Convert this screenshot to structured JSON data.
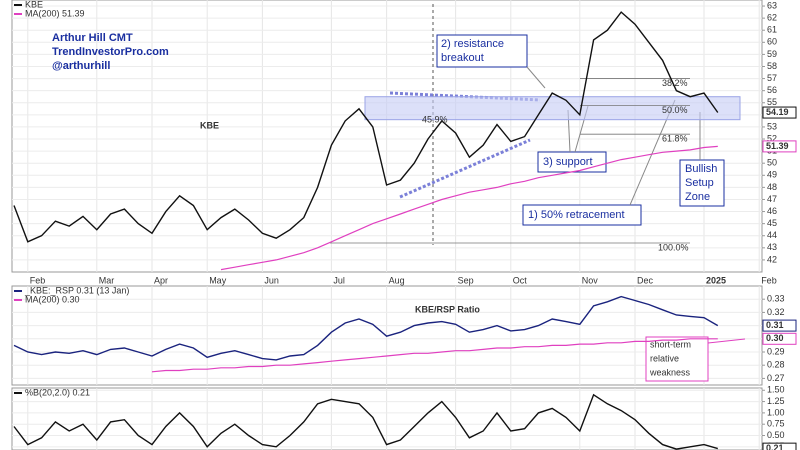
{
  "chart_data": [
    {
      "type": "line",
      "categories": [
        null,
        "Feb",
        null,
        null,
        null,
        null,
        "Mar",
        null,
        null,
        null,
        "Apr",
        null,
        null,
        null,
        "May",
        null,
        null,
        null,
        "Jun",
        null,
        null,
        null,
        null,
        "Jul",
        null,
        null,
        null,
        "Aug",
        null,
        null,
        null,
        null,
        "Sep",
        null,
        null,
        null,
        "Oct",
        null,
        null,
        null,
        null,
        "Nov",
        null,
        null,
        null,
        "Dec",
        null,
        null,
        null,
        null,
        "2025",
        null,
        null,
        null,
        "Feb",
        null
      ],
      "series": [
        {
          "name": "KBE",
          "color": "#111111",
          "values": [
            46.5,
            43.5,
            44,
            45.2,
            44.8,
            45.6,
            44.5,
            45.8,
            46.2,
            45,
            44.2,
            46,
            47.3,
            46.5,
            44.5,
            45.5,
            46.2,
            45.3,
            44.2,
            43.8,
            44.5,
            45.5,
            48,
            51.5,
            53.5,
            54.5,
            53,
            48.2,
            48.6,
            50,
            52,
            53.5,
            52.5,
            50.5,
            51.5,
            53.2,
            51.8,
            52.2,
            54,
            55.8,
            55.2,
            54,
            60.2,
            61,
            62.5,
            61.5,
            60,
            58.5,
            56,
            55.5,
            55.8,
            54.19,
            null,
            null,
            null,
            null
          ]
        },
        {
          "name": "MA(200) 51.39",
          "color": "#e040c0",
          "values": [
            null,
            null,
            null,
            null,
            null,
            null,
            null,
            null,
            null,
            null,
            null,
            null,
            null,
            null,
            null,
            41.2,
            41.4,
            41.6,
            41.8,
            42,
            42.3,
            42.6,
            43,
            43.5,
            44,
            44.5,
            45,
            45.4,
            45.8,
            46.2,
            46.6,
            47,
            47.3,
            47.6,
            47.8,
            48,
            48.3,
            48.5,
            48.8,
            49,
            49.2,
            49.4,
            49.7,
            50,
            50.3,
            50.5,
            50.7,
            50.9,
            51,
            51.1,
            51.3,
            51.39,
            null,
            null,
            null,
            null
          ]
        }
      ],
      "ylim": [
        41,
        63.5
      ],
      "yticks": [
        42,
        43,
        44,
        45,
        46,
        47,
        48,
        49,
        50,
        51,
        52,
        53,
        54,
        55,
        56,
        57,
        58,
        59,
        60,
        61,
        62,
        63
      ],
      "grid": true,
      "zone": [
        53.6,
        55.5
      ],
      "fib_levels": [
        {
          "label": "38.2%",
          "value": 57
        },
        {
          "label": "50.0%",
          "value": 54.76
        },
        {
          "label": "61.8%",
          "value": 52.4
        },
        {
          "label": "100.0%",
          "value": 43.4
        }
      ],
      "annotations": [
        "Arthur Hill CMT",
        "TrendInvestorPro.com",
        "@arthurhill",
        "KBE",
        "2) resistance",
        "breakout",
        "3) support",
        "1) 50% retracement",
        "Bullish",
        "Setup",
        "Zone",
        "45.9%"
      ]
    },
    {
      "type": "line",
      "series": [
        {
          "name": "_KBE:_RSP 0.31 (13 Jan)",
          "color": "#1a237e",
          "values": [
            0.295,
            0.29,
            0.288,
            0.29,
            0.289,
            0.291,
            0.288,
            0.292,
            0.293,
            0.29,
            0.287,
            0.292,
            0.296,
            0.293,
            0.286,
            0.289,
            0.291,
            0.288,
            0.285,
            0.284,
            0.287,
            0.288,
            0.295,
            0.305,
            0.312,
            0.315,
            0.311,
            0.302,
            0.305,
            0.31,
            0.312,
            0.313,
            0.311,
            0.305,
            0.307,
            0.31,
            0.306,
            0.307,
            0.31,
            0.315,
            0.313,
            0.311,
            0.325,
            0.328,
            0.332,
            0.329,
            0.326,
            0.322,
            0.318,
            0.317,
            0.316,
            0.31,
            null,
            null,
            null,
            null
          ]
        },
        {
          "name": "MA(200) 0.30",
          "color": "#e040c0",
          "values": [
            null,
            null,
            null,
            null,
            null,
            null,
            null,
            null,
            null,
            null,
            0.275,
            0.276,
            0.276,
            0.277,
            0.277,
            0.278,
            0.278,
            0.279,
            0.279,
            0.28,
            0.28,
            0.281,
            0.282,
            0.283,
            0.284,
            0.285,
            0.286,
            0.287,
            0.288,
            0.289,
            0.289,
            0.29,
            0.291,
            0.291,
            0.292,
            0.293,
            0.293,
            0.294,
            0.294,
            0.295,
            0.295,
            0.296,
            0.296,
            0.297,
            0.297,
            0.298,
            0.298,
            0.299,
            0.299,
            0.3,
            0.3,
            0.3,
            null,
            null,
            null,
            null
          ],
          "value_labels": [
            null,
            null,
            null,
            null,
            null,
            null,
            null,
            null,
            null,
            null,
            null,
            null,
            null,
            null,
            null,
            null,
            null,
            null,
            null,
            null,
            null,
            null,
            null,
            null,
            null,
            null,
            null,
            null,
            null,
            null,
            null,
            null,
            null,
            null,
            null,
            null,
            null,
            null,
            null,
            null,
            null,
            null,
            null,
            null,
            null,
            null,
            null,
            null,
            null,
            null,
            null,
            "0.30",
            null,
            null,
            null,
            null
          ]
        }
      ],
      "ylim": [
        0.265,
        0.34
      ],
      "yticks": [
        0.27,
        0.28,
        0.29,
        {
          "value": 0.3,
          "label": "0.30"
        },
        0.31,
        0.32,
        0.33
      ],
      "grid": true,
      "annotations": [
        "KBE/RSP Ratio",
        "short-term",
        "relative",
        "weakness"
      ]
    },
    {
      "type": "line",
      "series": [
        {
          "name": "%B(20,2.0) 0.21",
          "color": "#111111",
          "values": [
            0.7,
            0.3,
            0.45,
            0.8,
            0.6,
            0.75,
            0.4,
            0.8,
            0.85,
            0.5,
            0.3,
            0.7,
            1,
            0.7,
            0.25,
            0.55,
            0.75,
            0.5,
            0.3,
            0.25,
            0.5,
            0.8,
            1.2,
            1.3,
            1.25,
            1.2,
            0.9,
            0.3,
            0.4,
            0.7,
            1,
            1.25,
            0.9,
            0.45,
            0.6,
            1,
            0.6,
            0.65,
            1,
            1.1,
            0.9,
            0.6,
            1.4,
            1.2,
            1.05,
            0.85,
            0.55,
            0.3,
            0.2,
            0.25,
            0.3,
            0.21,
            null,
            null,
            null,
            null
          ]
        }
      ],
      "ylim": [
        0.18,
        1.55
      ],
      "yticks": [
        0.25,
        {
          "value": 0.5,
          "label": "0.50"
        },
        0.75,
        {
          "value": 1,
          "label": "1.00"
        },
        1.25,
        {
          "value": 1.5,
          "label": "1.50"
        }
      ],
      "grid": true
    }
  ]
}
